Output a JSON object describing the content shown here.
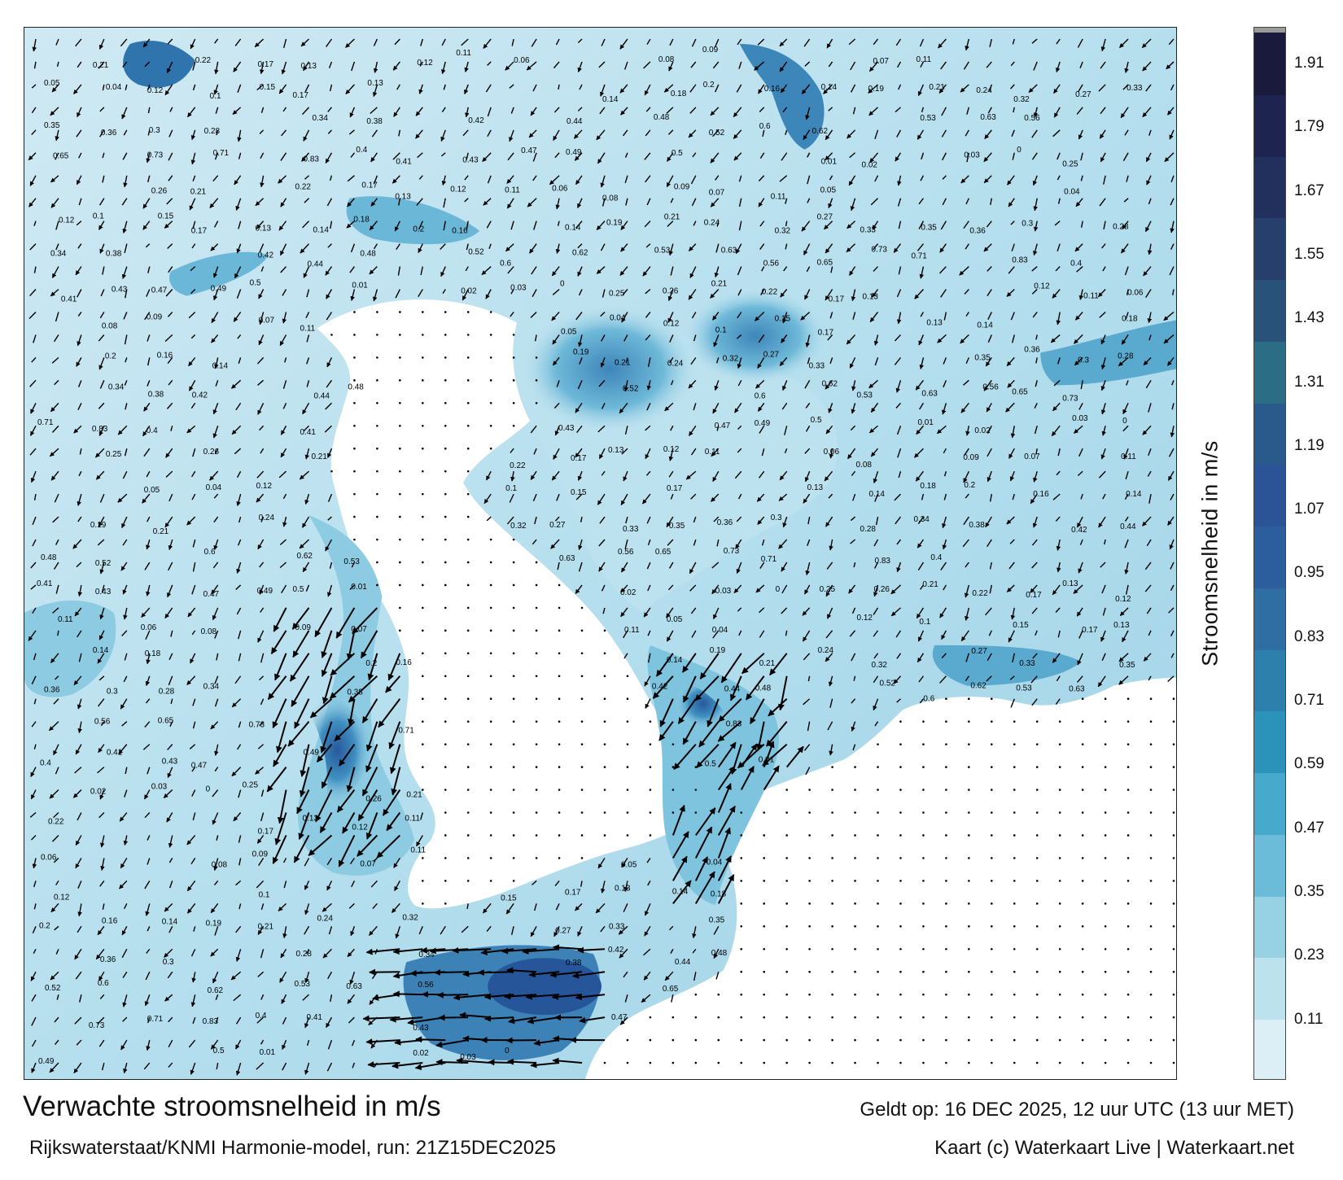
{
  "map": {
    "title": "Verwachte stroomsnelheid in m/s",
    "run_info": "Rijkswaterstaat/KNMI Harmonie-model, run: 21Z15DEC2025",
    "valid_time": "Geldt op: 16 DEC 2025, 12 uur UTC (13 uur MET)",
    "credits": "Kaart (c) Waterkaart Live | Waterkaart.net",
    "colors": {
      "land": "#ffffff",
      "water_low": "#e4f3f8",
      "water_mid": "#a9d8e8",
      "water_high": "#3d8fbf",
      "current_max": "#26559a",
      "arrow": "#000000"
    }
  },
  "colorbar": {
    "label": "Stroomsnelheid in m/s",
    "ticks": [
      "1.91",
      "1.79",
      "1.67",
      "1.55",
      "1.43",
      "1.31",
      "1.19",
      "1.07",
      "0.95",
      "0.83",
      "0.71",
      "0.59",
      "0.47",
      "0.35",
      "0.23",
      "0.11"
    ],
    "segment_colors": [
      "#dceff6",
      "#bce2ee",
      "#97d1e4",
      "#6bbcd8",
      "#47a9cb",
      "#2b93b9",
      "#2e80ac",
      "#2f6ea3",
      "#2c5e9d",
      "#2a5496",
      "#2a5a8c",
      "#2b6d84",
      "#285279",
      "#263f6c",
      "#22305d",
      "#1e2450",
      "#1a1a3d"
    ]
  },
  "vector_labels": [
    {
      "t": "0.21"
    },
    {
      "t": "0.22"
    },
    {
      "t": "0.17"
    },
    {
      "t": "0.13"
    },
    {
      "t": "0.12"
    },
    {
      "t": "0.11"
    },
    {
      "t": "0.06"
    },
    {
      "t": "0.08"
    },
    {
      "t": "0.09"
    },
    {
      "t": "0.07"
    },
    {
      "t": "0.11"
    },
    {
      "t": "0.05"
    },
    {
      "t": "0.04"
    },
    {
      "t": "0.12"
    },
    {
      "t": "0.1"
    },
    {
      "t": "0.15"
    },
    {
      "t": "0.17"
    },
    {
      "t": "0.13"
    },
    {
      "t": "0.14"
    },
    {
      "t": "0.18"
    },
    {
      "t": "0.2"
    },
    {
      "t": "0.16"
    },
    {
      "t": "0.14"
    },
    {
      "t": "0.19"
    },
    {
      "t": "0.21"
    },
    {
      "t": "0.24"
    },
    {
      "t": "0.32"
    },
    {
      "t": "0.27"
    },
    {
      "t": "0.33"
    },
    {
      "t": "0.35"
    },
    {
      "t": "0.36"
    },
    {
      "t": "0.3"
    },
    {
      "t": "0.28"
    },
    {
      "t": "0.34"
    },
    {
      "t": "0.38"
    },
    {
      "t": "0.42"
    },
    {
      "t": "0.44"
    },
    {
      "t": "0.48"
    },
    {
      "t": "0.52"
    },
    {
      "t": "0.6"
    },
    {
      "t": "0.62"
    },
    {
      "t": "0.53"
    },
    {
      "t": "0.63"
    },
    {
      "t": "0.56"
    },
    {
      "t": "0.65"
    },
    {
      "t": "0.73"
    },
    {
      "t": "0.71"
    },
    {
      "t": "0.83"
    },
    {
      "t": "0.4"
    },
    {
      "t": "0.41"
    },
    {
      "t": "0.43"
    },
    {
      "t": "0.47"
    },
    {
      "t": "0.49"
    },
    {
      "t": "0.5"
    },
    {
      "t": "0.01"
    },
    {
      "t": "0.02"
    },
    {
      "t": "0.03"
    },
    {
      "t": "0"
    },
    {
      "t": "0.25"
    },
    {
      "t": "0.26"
    }
  ]
}
